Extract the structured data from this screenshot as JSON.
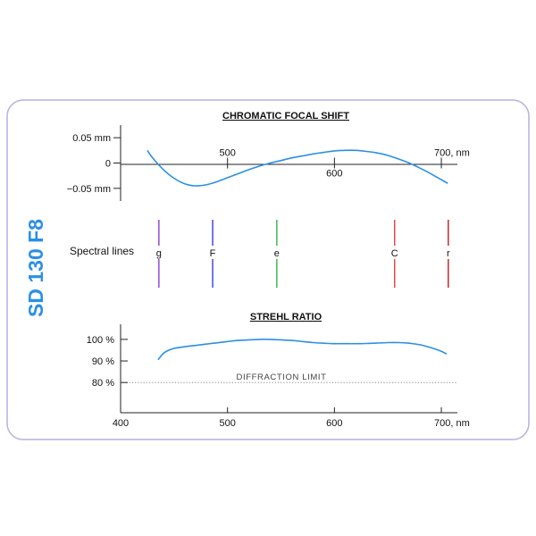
{
  "colors": {
    "border": "#b6b1e0",
    "curve": "#2b8fe6",
    "axis": "#222222",
    "side_title": "#2b8fe6",
    "diffraction": "#777777"
  },
  "side_title": "SD 130 F8",
  "spectral_label": "Spectral lines",
  "spectral_lines": [
    {
      "name": "g",
      "wavelength": 435.8,
      "color": "#8a3fd1"
    },
    {
      "name": "F",
      "wavelength": 486.1,
      "color": "#3a3ae0"
    },
    {
      "name": "e",
      "wavelength": 546.1,
      "color": "#31b34a"
    },
    {
      "name": "C",
      "wavelength": 656.3,
      "color": "#e04040"
    },
    {
      "name": "r",
      "wavelength": 706.5,
      "color": "#b81c1c"
    }
  ],
  "chart_data": [
    {
      "type": "line",
      "title": "CHROMATIC FOCAL SHIFT",
      "x_tick_labels": [
        {
          "value": 500,
          "label": "500",
          "position": "above"
        },
        {
          "value": 600,
          "label": "600",
          "position": "below"
        },
        {
          "value": 700,
          "label": "700, nm",
          "position": "above"
        }
      ],
      "y_tick_labels": [
        {
          "value": 0.05,
          "label": "0.05 mm"
        },
        {
          "value": 0,
          "label": "0"
        },
        {
          "value": -0.05,
          "label": "−0.05 mm"
        }
      ],
      "xlim": [
        400,
        715
      ],
      "ylim": [
        -0.075,
        0.075
      ],
      "series": [
        {
          "x": [
            425,
            430,
            440,
            450,
            460,
            470,
            480,
            490,
            500,
            510,
            520,
            530,
            540,
            550,
            560,
            570,
            580,
            590,
            600,
            610,
            620,
            630,
            640,
            650,
            660,
            670,
            680,
            690,
            700,
            706
          ],
          "y": [
            0.025,
            0.01,
            -0.013,
            -0.03,
            -0.041,
            -0.045,
            -0.043,
            -0.037,
            -0.029,
            -0.021,
            -0.013,
            -0.006,
            0.0,
            0.005,
            0.01,
            0.014,
            0.018,
            0.021,
            0.024,
            0.025,
            0.025,
            0.023,
            0.02,
            0.015,
            0.008,
            0.0,
            -0.01,
            -0.021,
            -0.033,
            -0.04
          ]
        }
      ]
    },
    {
      "type": "line",
      "title": "STREHL RATIO",
      "x_tick_labels": [
        {
          "value": 400,
          "label": "400"
        },
        {
          "value": 500,
          "label": "500"
        },
        {
          "value": 600,
          "label": "600"
        },
        {
          "value": 700,
          "label": "700, nm"
        }
      ],
      "y_tick_labels": [
        {
          "value": 100,
          "label": "100 %"
        },
        {
          "value": 90,
          "label": "90 %"
        },
        {
          "value": 80,
          "label": "80 %"
        }
      ],
      "xlim": [
        400,
        715
      ],
      "ylim": [
        66,
        107
      ],
      "reference_line": {
        "value": 80,
        "label": "DIFFRACTION LIMIT"
      },
      "series": [
        {
          "x": [
            435,
            440,
            445,
            450,
            460,
            470,
            480,
            490,
            500,
            510,
            520,
            530,
            540,
            550,
            560,
            570,
            580,
            590,
            600,
            610,
            620,
            630,
            640,
            650,
            660,
            670,
            680,
            690,
            700,
            705
          ],
          "y": [
            90.5,
            93.5,
            95.0,
            95.8,
            96.6,
            97.2,
            97.8,
            98.4,
            99.0,
            99.5,
            99.8,
            100.0,
            100.0,
            99.8,
            99.5,
            99.0,
            98.5,
            98.2,
            98.0,
            98.0,
            98.0,
            98.1,
            98.3,
            98.5,
            98.5,
            98.2,
            97.5,
            96.2,
            94.5,
            93.2
          ]
        }
      ]
    }
  ]
}
